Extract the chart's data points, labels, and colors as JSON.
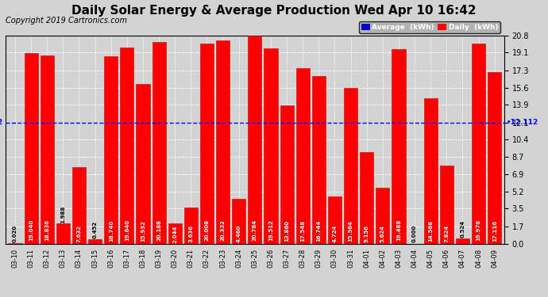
{
  "title": "Daily Solar Energy & Average Production Wed Apr 10 16:42",
  "copyright": "Copyright 2019 Cartronics.com",
  "average_value": 12.112,
  "categories": [
    "03-10",
    "03-11",
    "03-12",
    "03-13",
    "03-14",
    "03-15",
    "03-16",
    "03-17",
    "03-18",
    "03-19",
    "03-20",
    "03-21",
    "03-22",
    "03-23",
    "03-24",
    "03-25",
    "03-26",
    "03-27",
    "03-28",
    "03-29",
    "03-30",
    "03-31",
    "04-01",
    "04-02",
    "04-03",
    "04-04",
    "04-05",
    "04-06",
    "04-07",
    "04-08",
    "04-09"
  ],
  "values": [
    0.02,
    19.04,
    18.836,
    1.988,
    7.632,
    0.452,
    18.74,
    19.64,
    15.932,
    20.188,
    2.044,
    3.636,
    20.008,
    20.332,
    4.46,
    20.784,
    19.512,
    13.86,
    17.548,
    16.744,
    4.724,
    15.564,
    9.156,
    5.624,
    19.488,
    0.0,
    14.568,
    7.824,
    0.524,
    19.976,
    17.116
  ],
  "bar_color": "#ff0000",
  "bar_edge_color": "#cc0000",
  "avg_line_color": "#0000ff",
  "ylim": [
    0.0,
    20.8
  ],
  "yticks": [
    0.0,
    1.7,
    3.5,
    5.2,
    6.9,
    8.7,
    10.4,
    12.1,
    13.9,
    15.6,
    17.3,
    19.1,
    20.8
  ],
  "bg_color": "#d3d3d3",
  "avg_label_text": "12.112",
  "bar_label_fontsize": 5.0,
  "title_fontsize": 11,
  "copyright_fontsize": 7.0,
  "legend_avg_color": "#0000cc",
  "legend_daily_color": "#ff0000"
}
